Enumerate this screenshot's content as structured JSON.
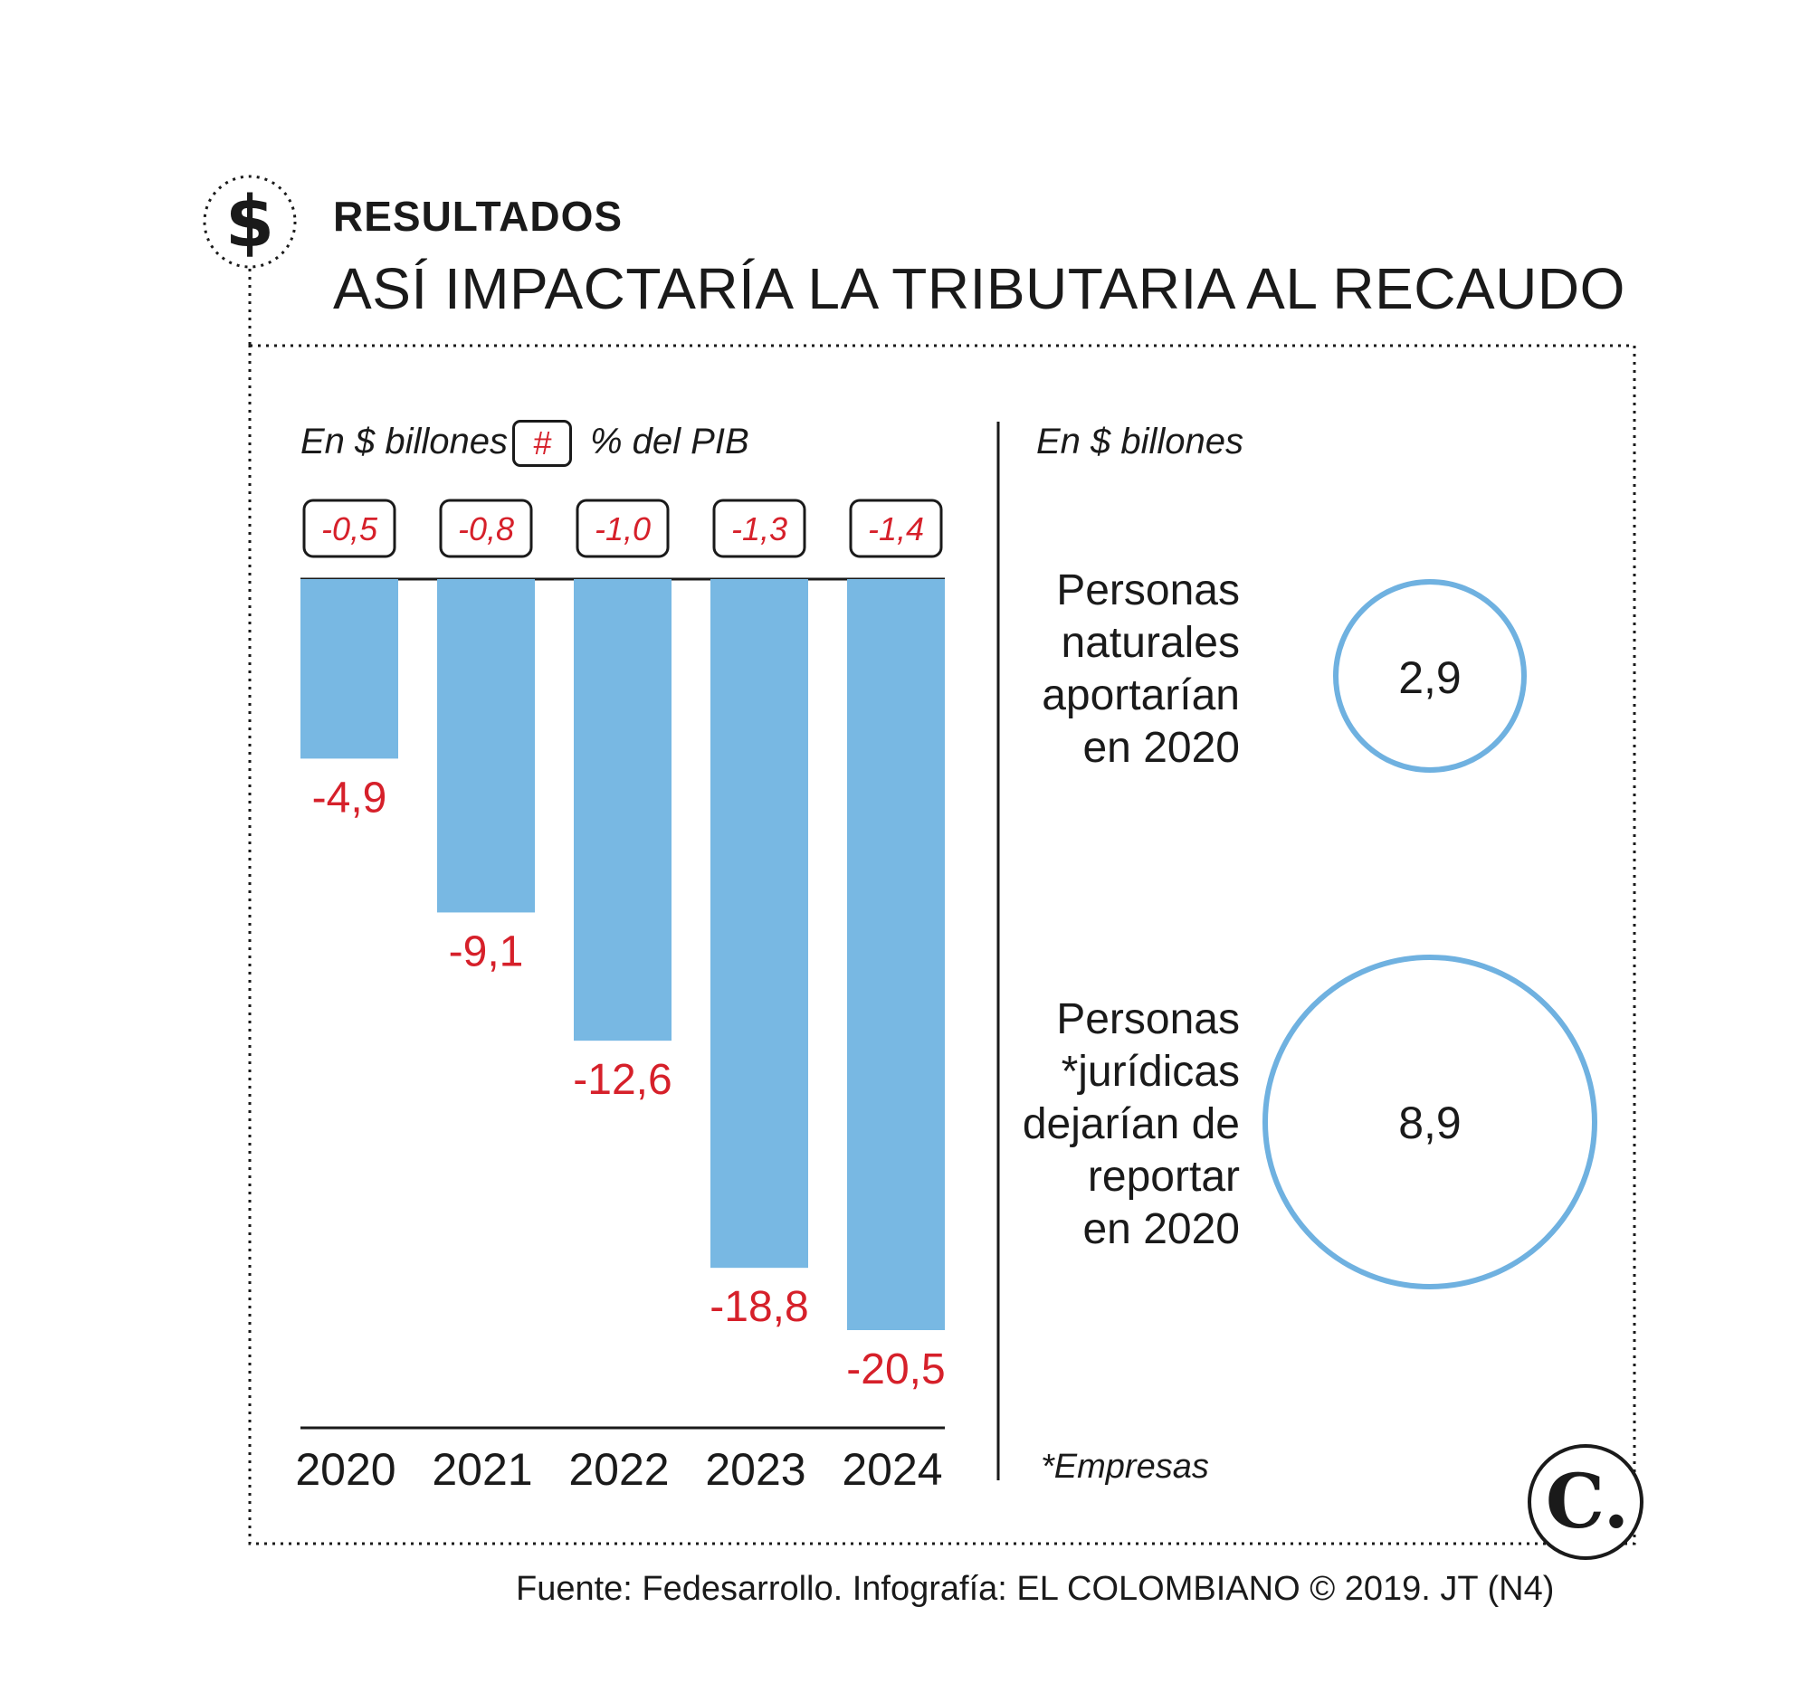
{
  "header": {
    "icon": "dollar-icon",
    "kicker": "RESULTADOS",
    "title": "ASÍ IMPACTARÍA LA TRIBUTARIA AL RECAUDO"
  },
  "colors": {
    "bar": "#78b8e3",
    "negative_text": "#d6202a",
    "circle": "#6fb1e0",
    "text": "#1a1a1a"
  },
  "left_panel": {
    "unit_label": "En $ billones",
    "legend_symbol": "#",
    "legend_text": "% del PIB"
  },
  "right_panel": {
    "unit_label": "En $ billones",
    "items": [
      {
        "label_lines": [
          "Personas",
          "naturales",
          "aportarían",
          "en 2020"
        ],
        "value": "2,9",
        "amount": 2.9
      },
      {
        "label_lines": [
          "Personas",
          "*jurídicas",
          "dejarían de",
          "reportar",
          "en 2020"
        ],
        "value": "8,9",
        "amount": 8.9
      }
    ],
    "footnote": "*Empresas"
  },
  "chart_data": {
    "type": "bar",
    "title": "ASÍ IMPACTARÍA LA TRIBUTARIA AL RECAUDO",
    "ylabel": "En $ billones",
    "categories": [
      "2020",
      "2021",
      "2022",
      "2023",
      "2024"
    ],
    "values": [
      -4.9,
      -9.1,
      -12.6,
      -18.8,
      -20.5
    ],
    "value_labels": [
      "-4,9",
      "-9,1",
      "-12,6",
      "-18,8",
      "-20,5"
    ],
    "pib_labels": [
      "-0,5",
      "-0,8",
      "-1,0",
      "-1,3",
      "-1,4"
    ],
    "ylim": [
      -23,
      0
    ],
    "grid": false
  },
  "footer": {
    "source": "Fuente: Fedesarrollo. Infografía: EL COLOMBIANO © 2019. JT (N4)",
    "logo": "C."
  }
}
